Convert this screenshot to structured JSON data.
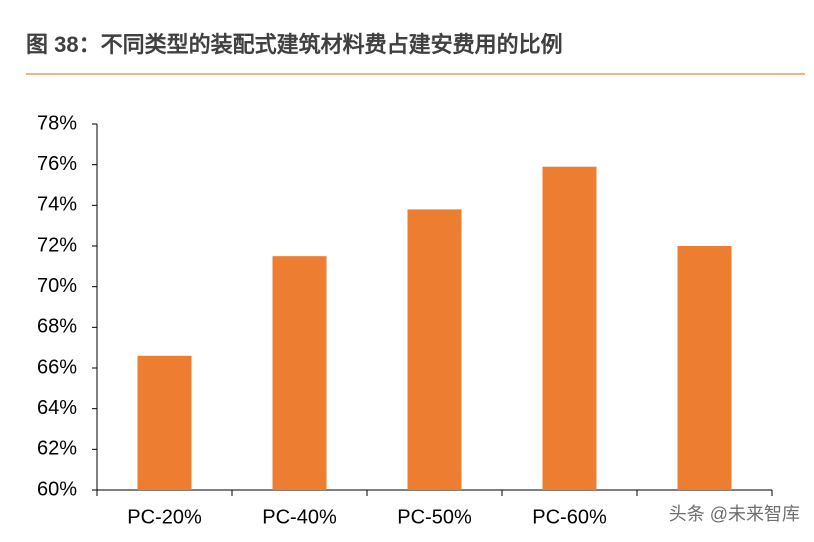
{
  "chart_data": {
    "type": "bar",
    "title": "图 38：不同类型的装配式建筑材料费占建安费用的比例",
    "categories": [
      "PC-20%",
      "PC-40%",
      "PC-50%",
      "PC-60%",
      null
    ],
    "values": [
      66.6,
      71.5,
      73.8,
      75.9,
      72.0
    ],
    "color": "#ed7d31",
    "ylim": [
      60,
      78
    ],
    "yticks": [
      {
        "value": 60,
        "label": "60%"
      },
      {
        "value": 62,
        "label": "62%"
      },
      {
        "value": 64,
        "label": "64%"
      },
      {
        "value": 66,
        "label": "66%"
      },
      {
        "value": 68,
        "label": "68%"
      },
      {
        "value": 70,
        "label": "70%"
      },
      {
        "value": 72,
        "label": "72%"
      },
      {
        "value": 74,
        "label": "74%"
      },
      {
        "value": 76,
        "label": "76%"
      },
      {
        "value": 78,
        "label": "78%"
      }
    ],
    "grid": false,
    "watermark": "头条 @未来智库"
  }
}
